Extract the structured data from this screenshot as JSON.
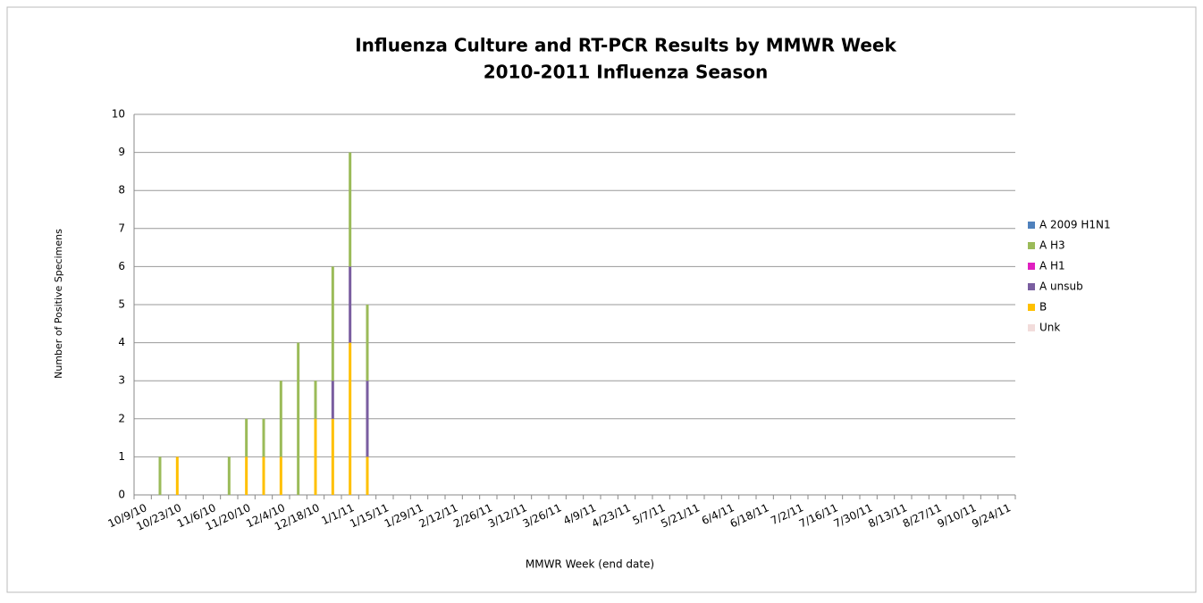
{
  "chart_data": {
    "type": "stacked_bar",
    "title": "Influenza Culture and RT-PCR Results by MMWR Week",
    "subtitle": "2010-2011 Influenza Season",
    "x_label": "MMWR Week (end date)",
    "y_label": "Number of Positive Specimens",
    "categories": [
      "10/9/10",
      null,
      "10/23/10",
      null,
      "11/6/10",
      null,
      "11/20/10",
      null,
      "12/4/10",
      null,
      "12/18/10",
      null,
      "1/1/11",
      null,
      "1/15/11",
      null,
      "1/29/11",
      null,
      "2/12/11",
      null,
      "2/26/11",
      null,
      "3/12/11",
      null,
      "3/26/11",
      null,
      "4/9/11",
      null,
      "4/23/11",
      null,
      "5/7/11",
      null,
      "5/21/11",
      null,
      "6/4/11",
      null,
      "6/18/11",
      null,
      "7/2/11",
      null,
      "7/16/11",
      null,
      "7/30/11",
      null,
      "8/13/11",
      null,
      "8/27/11",
      null,
      "9/10/11",
      null,
      "9/24/11"
    ],
    "series": [
      {
        "name": "A 2009 H1N1",
        "color": "#4f81bd",
        "values": [
          0,
          0,
          0,
          0,
          0,
          0,
          0,
          0,
          0,
          0,
          0,
          0,
          0,
          0,
          0,
          0,
          0,
          0,
          0,
          0,
          0,
          0,
          0,
          0,
          0,
          0,
          0,
          0,
          0,
          0,
          0,
          0,
          0,
          0,
          0,
          0,
          0,
          0,
          0,
          0,
          0,
          0,
          0,
          0,
          0,
          0,
          0,
          0,
          0,
          0,
          0
        ]
      },
      {
        "name": "A H3",
        "color": "#9bbb59",
        "values": [
          0,
          1,
          0,
          0,
          0,
          1,
          1,
          1,
          2,
          4,
          1,
          3,
          3,
          2,
          0,
          0,
          0,
          0,
          0,
          0,
          0,
          0,
          0,
          0,
          0,
          0,
          0,
          0,
          0,
          0,
          0,
          0,
          0,
          0,
          0,
          0,
          0,
          0,
          0,
          0,
          0,
          0,
          0,
          0,
          0,
          0,
          0,
          0,
          0,
          0,
          0
        ]
      },
      {
        "name": "A H1",
        "color": "#e020c0",
        "values": [
          0,
          0,
          0,
          0,
          0,
          0,
          0,
          0,
          0,
          0,
          0,
          0,
          0,
          0,
          0,
          0,
          0,
          0,
          0,
          0,
          0,
          0,
          0,
          0,
          0,
          0,
          0,
          0,
          0,
          0,
          0,
          0,
          0,
          0,
          0,
          0,
          0,
          0,
          0,
          0,
          0,
          0,
          0,
          0,
          0,
          0,
          0,
          0,
          0,
          0,
          0
        ]
      },
      {
        "name": "A unsub",
        "color": "#7a5ea0",
        "values": [
          0,
          0,
          0,
          0,
          0,
          0,
          0,
          0,
          0,
          0,
          0,
          1,
          2,
          2,
          0,
          0,
          0,
          0,
          0,
          0,
          0,
          0,
          0,
          0,
          0,
          0,
          0,
          0,
          0,
          0,
          0,
          0,
          0,
          0,
          0,
          0,
          0,
          0,
          0,
          0,
          0,
          0,
          0,
          0,
          0,
          0,
          0,
          0,
          0,
          0,
          0
        ]
      },
      {
        "name": "B",
        "color": "#ffc000",
        "values": [
          0,
          0,
          1,
          0,
          0,
          0,
          1,
          1,
          1,
          0,
          2,
          2,
          4,
          1,
          0,
          0,
          0,
          0,
          0,
          0,
          0,
          0,
          0,
          0,
          0,
          0,
          0,
          0,
          0,
          0,
          0,
          0,
          0,
          0,
          0,
          0,
          0,
          0,
          0,
          0,
          0,
          0,
          0,
          0,
          0,
          0,
          0,
          0,
          0,
          0,
          0
        ]
      },
      {
        "name": "Unk",
        "color": "#f2dcdb",
        "values": [
          0,
          0,
          0,
          0,
          0,
          0,
          0,
          0,
          0,
          0,
          0,
          0,
          0,
          0,
          0,
          0,
          0,
          0,
          0,
          0,
          0,
          0,
          0,
          0,
          0,
          0,
          0,
          0,
          0,
          0,
          0,
          0,
          0,
          0,
          0,
          0,
          0,
          0,
          0,
          0,
          0,
          0,
          0,
          0,
          0,
          0,
          0,
          0,
          0,
          0,
          0
        ]
      }
    ],
    "ylim": [
      0,
      10
    ],
    "yticks": [
      0,
      1,
      2,
      3,
      4,
      5,
      6,
      7,
      8,
      9,
      10
    ],
    "grid": true,
    "legend": "right"
  }
}
